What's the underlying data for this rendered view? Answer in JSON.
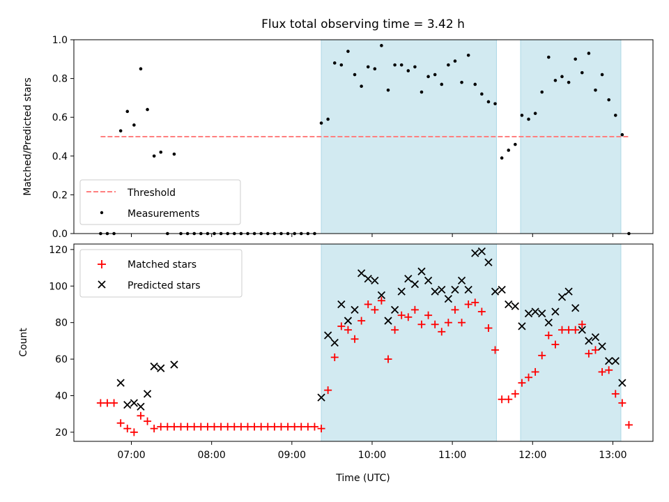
{
  "title": "Flux total observing time = 3.42 h",
  "colors": {
    "threshold": "#ff7f7f",
    "measurements": "#000000",
    "matched": "#ff0000",
    "predicted": "#000000",
    "span": "#add8e6"
  },
  "chart_data": [
    {
      "type": "scatter",
      "panel": "top",
      "ylabel": "Matched/Predicted stars",
      "ylim": [
        0,
        1.0
      ],
      "yticks": [
        0.0,
        0.2,
        0.4,
        0.6,
        0.8,
        1.0
      ],
      "ytick_labels": [
        "0.0",
        "0.2",
        "0.4",
        "0.6",
        "0.8",
        "1.0"
      ],
      "shaded_spans": [
        [
          "09:22",
          "11:33"
        ],
        [
          "11:51",
          "13:06"
        ]
      ],
      "legend": {
        "position": "lower-left",
        "threshold_label": "Threshold",
        "measurements_label": "Measurements"
      },
      "threshold": {
        "value": 0.5,
        "x": [
          "06:37",
          "13:12"
        ]
      },
      "series": [
        {
          "name": "Measurements",
          "x": [
            "06:37",
            "06:42",
            "06:47",
            "06:52",
            "06:57",
            "07:02",
            "07:07",
            "07:12",
            "07:17",
            "07:22",
            "07:27",
            "07:32",
            "07:37",
            "07:42",
            "07:47",
            "07:52",
            "07:57",
            "08:02",
            "08:07",
            "08:12",
            "08:17",
            "08:22",
            "08:27",
            "08:32",
            "08:37",
            "08:42",
            "08:47",
            "08:52",
            "08:57",
            "09:02",
            "09:07",
            "09:12",
            "09:17",
            "09:22",
            "09:27",
            "09:32",
            "09:37",
            "09:42",
            "09:47",
            "09:52",
            "09:57",
            "10:02",
            "10:07",
            "10:12",
            "10:17",
            "10:22",
            "10:27",
            "10:32",
            "10:37",
            "10:42",
            "10:47",
            "10:52",
            "10:57",
            "11:02",
            "11:07",
            "11:12",
            "11:17",
            "11:22",
            "11:27",
            "11:32",
            "11:37",
            "11:42",
            "11:47",
            "11:52",
            "11:57",
            "12:02",
            "12:07",
            "12:12",
            "12:17",
            "12:22",
            "12:27",
            "12:32",
            "12:37",
            "12:42",
            "12:47",
            "12:52",
            "12:57",
            "13:02",
            "13:07",
            "13:12"
          ],
          "y": [
            0,
            0,
            0,
            0.53,
            0.63,
            0.56,
            0.85,
            0.64,
            0.4,
            0.42,
            0,
            0.41,
            0,
            0,
            0,
            0,
            0,
            0,
            0,
            0,
            0,
            0,
            0,
            0,
            0,
            0,
            0,
            0,
            0,
            0,
            0,
            0,
            0,
            0.57,
            0.59,
            0.88,
            0.87,
            0.94,
            0.82,
            0.76,
            0.86,
            0.85,
            0.97,
            0.74,
            0.87,
            0.87,
            0.84,
            0.86,
            0.73,
            0.81,
            0.82,
            0.77,
            0.87,
            0.89,
            0.78,
            0.92,
            0.77,
            0.72,
            0.68,
            0.67,
            0.39,
            0.43,
            0.46,
            0.61,
            0.59,
            0.62,
            0.73,
            0.91,
            0.79,
            0.81,
            0.78,
            0.9,
            0.83,
            0.93,
            0.74,
            0.82,
            0.69,
            0.61,
            0.51,
            0
          ]
        }
      ]
    },
    {
      "type": "scatter",
      "panel": "bottom",
      "xlabel": "Time (UTC)",
      "ylabel": "Count",
      "xlim": [
        "06:17",
        "13:30"
      ],
      "ylim": [
        15,
        123
      ],
      "xticks": [
        "07:00",
        "08:00",
        "09:00",
        "10:00",
        "11:00",
        "12:00",
        "13:00"
      ],
      "yticks": [
        20,
        40,
        60,
        80,
        100,
        120
      ],
      "shaded_spans": [
        [
          "09:22",
          "11:33"
        ],
        [
          "11:51",
          "13:06"
        ]
      ],
      "legend": {
        "position": "upper-left",
        "matched_label": "Matched stars",
        "predicted_label": "Predicted stars"
      },
      "series": [
        {
          "name": "Matched stars",
          "marker": "+",
          "x": [
            "06:37",
            "06:42",
            "06:47",
            "06:52",
            "06:57",
            "07:02",
            "07:07",
            "07:12",
            "07:17",
            "07:22",
            "07:27",
            "07:32",
            "07:37",
            "07:42",
            "07:47",
            "07:52",
            "07:57",
            "08:02",
            "08:07",
            "08:12",
            "08:17",
            "08:22",
            "08:27",
            "08:32",
            "08:37",
            "08:42",
            "08:47",
            "08:52",
            "08:57",
            "09:02",
            "09:07",
            "09:12",
            "09:17",
            "09:22",
            "09:27",
            "09:32",
            "09:37",
            "09:42",
            "09:47",
            "09:52",
            "09:57",
            "10:02",
            "10:07",
            "10:12",
            "10:17",
            "10:22",
            "10:27",
            "10:32",
            "10:37",
            "10:42",
            "10:47",
            "10:52",
            "10:57",
            "11:02",
            "11:07",
            "11:12",
            "11:17",
            "11:22",
            "11:27",
            "11:32",
            "11:37",
            "11:42",
            "11:47",
            "11:52",
            "11:57",
            "12:02",
            "12:07",
            "12:12",
            "12:17",
            "12:22",
            "12:27",
            "12:32",
            "12:37",
            "12:42",
            "12:47",
            "12:52",
            "12:57",
            "13:02",
            "13:07",
            "13:12"
          ],
          "y": [
            36,
            36,
            36,
            25,
            22,
            20,
            29,
            26,
            22,
            23,
            23,
            23,
            23,
            23,
            23,
            23,
            23,
            23,
            23,
            23,
            23,
            23,
            23,
            23,
            23,
            23,
            23,
            23,
            23,
            23,
            23,
            23,
            23,
            22,
            43,
            61,
            78,
            76,
            71,
            81,
            90,
            87,
            92,
            60,
            76,
            84,
            83,
            87,
            79,
            84,
            79,
            75,
            80,
            87,
            80,
            90,
            91,
            86,
            77,
            65,
            38,
            38,
            41,
            47,
            50,
            53,
            62,
            73,
            68,
            76,
            76,
            76,
            79,
            63,
            65,
            53,
            54,
            41,
            36,
            24
          ]
        },
        {
          "name": "Predicted stars",
          "marker": "x",
          "x": [
            "06:52",
            "06:57",
            "07:02",
            "07:07",
            "07:12",
            "07:17",
            "07:22",
            "07:32",
            "09:22",
            "09:27",
            "09:32",
            "09:37",
            "09:42",
            "09:47",
            "09:52",
            "09:57",
            "10:02",
            "10:07",
            "10:12",
            "10:17",
            "10:22",
            "10:27",
            "10:32",
            "10:37",
            "10:42",
            "10:47",
            "10:52",
            "10:57",
            "11:02",
            "11:07",
            "11:12",
            "11:17",
            "11:22",
            "11:27",
            "11:32",
            "11:37",
            "11:42",
            "11:47",
            "11:52",
            "11:57",
            "12:02",
            "12:07",
            "12:12",
            "12:17",
            "12:22",
            "12:27",
            "12:32",
            "12:37",
            "12:42",
            "12:47",
            "12:52",
            "12:57",
            "13:02",
            "13:07"
          ],
          "y": [
            47,
            35,
            36,
            34,
            41,
            56,
            55,
            57,
            39,
            73,
            69,
            90,
            81,
            87,
            107,
            104,
            103,
            95,
            81,
            87,
            97,
            104,
            101,
            108,
            103,
            97,
            98,
            93,
            98,
            103,
            98,
            118,
            119,
            113,
            97,
            98,
            90,
            89,
            78,
            85,
            86,
            85,
            80,
            86,
            94,
            97,
            88,
            76,
            70,
            72,
            67,
            59,
            59,
            47
          ]
        }
      ]
    }
  ]
}
